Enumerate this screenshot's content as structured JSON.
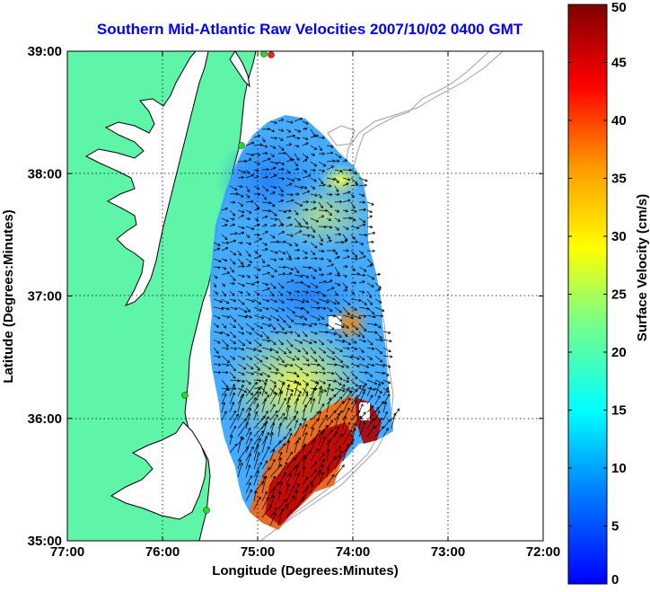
{
  "title": "Southern Mid-Atlantic Raw Velocities 2007/10/02 0400 GMT",
  "xlabel": "Longitude (Degrees:Minutes)",
  "ylabel": "Latitude (Degrees:Minutes)",
  "colorbar_label": "Surface Velocity (cm/s)",
  "x_ticks": [
    "77:00",
    "76:00",
    "75:00",
    "74:00",
    "73:00",
    "72:00"
  ],
  "y_ticks": [
    "39:00",
    "38:00",
    "37:00",
    "36:00",
    "35:00"
  ],
  "colorbar_ticks": [
    "50",
    "45",
    "40",
    "35",
    "30",
    "25",
    "20",
    "15",
    "10",
    "5",
    "0"
  ],
  "colors": {
    "land": "#5ef5a8",
    "coastline": "#000000",
    "bathymetry": "#a0a0a0",
    "title": "#0000ff",
    "station": "#22dd22",
    "station_alt": "#ff2020"
  },
  "map": {
    "lon_range": [
      -77,
      -72
    ],
    "lat_range": [
      35,
      39
    ],
    "velocity_range_cm_s": [
      0,
      50
    ],
    "colormap": "jet"
  }
}
